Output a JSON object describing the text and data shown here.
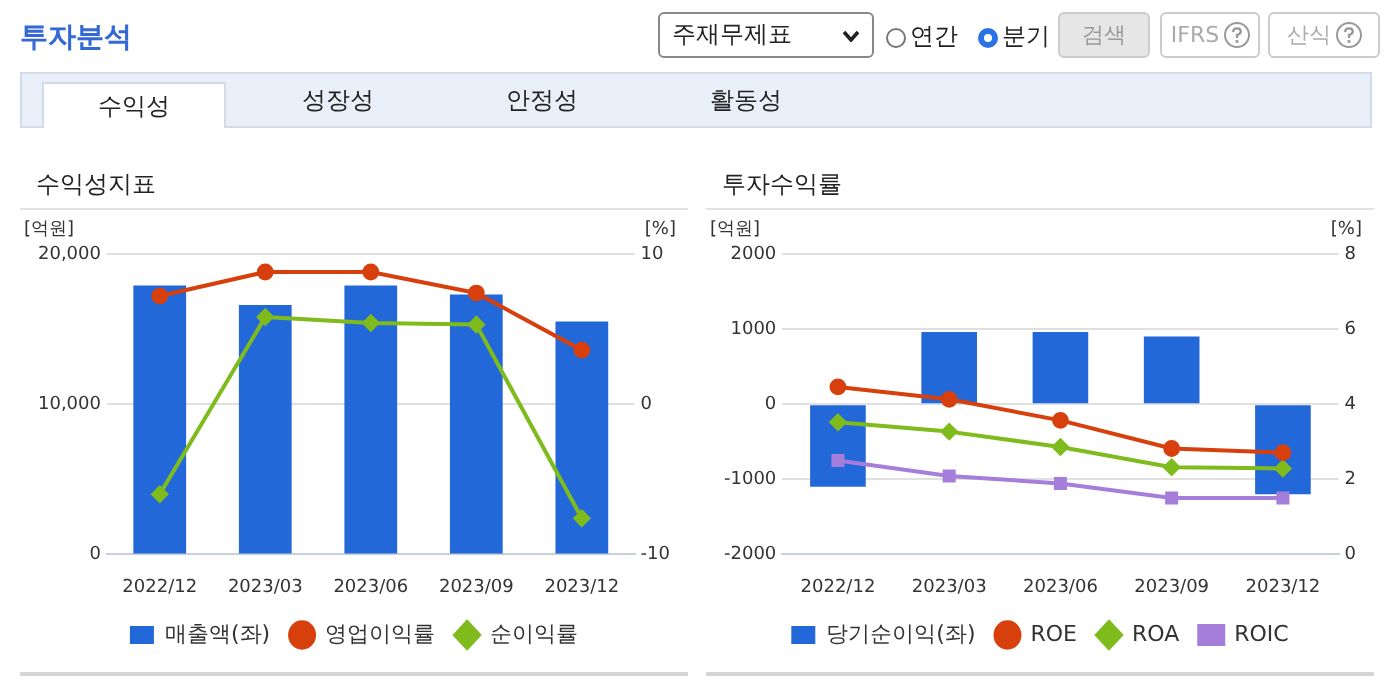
{
  "chart_data": [
    {
      "type": "other",
      "title": "투자분석",
      "annotations": [
        "주재무제표",
        "연간",
        "분기",
        "검색",
        "IFRS",
        "산식",
        "수익성",
        "성장성",
        "안정성",
        "활동성"
      ]
    },
    {
      "type": "bar",
      "title": "수익성지표",
      "ylabel": "[억원]",
      "y2label": "[%]",
      "categories": [
        "2022/12",
        "2023/03",
        "2023/06",
        "2023/09",
        "2023/12"
      ],
      "ylim": [
        0,
        20000
      ],
      "yticks": [
        0,
        {
          "value": 10000,
          "label": "10,000"
        },
        {
          "value": 20000,
          "label": "20,000"
        }
      ],
      "y2lim": [
        -10,
        10
      ],
      "y2ticks": [
        -10,
        0,
        10
      ],
      "grid": "y",
      "legend": "bottom",
      "series": [
        {
          "name": "매출액(좌)",
          "type": "bar",
          "color": "#2368d8",
          "values": [
            17900,
            16600,
            17900,
            17300,
            15500
          ]
        },
        {
          "name": "영업이익률",
          "type": "line",
          "axis": "y2",
          "marker": "circle",
          "color": "#d7400c",
          "values": [
            7.2,
            8.8,
            8.8,
            7.4,
            3.6
          ]
        },
        {
          "name": "순이익률",
          "type": "line",
          "axis": "y2",
          "marker": "diamond",
          "color": "#7fbb1c",
          "values": [
            -6.0,
            5.8,
            5.4,
            5.3,
            -7.6
          ]
        }
      ]
    },
    {
      "type": "bar",
      "title": "투자수익률",
      "ylabel": "[억원]",
      "y2label": "[%]",
      "categories": [
        "2022/12",
        "2023/03",
        "2023/06",
        "2023/09",
        "2023/12"
      ],
      "ylim": [
        -2000,
        2000
      ],
      "yticks": [
        -2000,
        -1000,
        0,
        1000,
        2000
      ],
      "y2lim": [
        0,
        8
      ],
      "y2ticks": [
        0,
        2,
        4,
        6,
        8
      ],
      "grid": "y",
      "legend": "bottom",
      "series": [
        {
          "name": "당기순이익(좌)",
          "type": "bar",
          "color": "#2368d8",
          "values": [
            -1100,
            960,
            960,
            900,
            -1200
          ]
        },
        {
          "name": "ROE",
          "type": "line",
          "axis": "y2",
          "marker": "circle",
          "color": "#d7400c",
          "values": [
            4.46,
            4.13,
            3.57,
            2.82,
            2.71
          ]
        },
        {
          "name": "ROA",
          "type": "line",
          "axis": "y2",
          "marker": "diamond",
          "color": "#7fbb1c",
          "values": [
            3.52,
            3.27,
            2.86,
            2.32,
            2.29
          ]
        },
        {
          "name": "ROIC",
          "type": "line",
          "axis": "y2",
          "marker": "square",
          "color": "#a57ddb",
          "values": [
            2.5,
            2.09,
            1.89,
            1.5,
            1.5
          ]
        }
      ]
    }
  ]
}
